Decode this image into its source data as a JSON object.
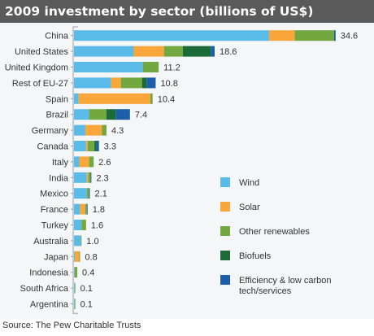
{
  "title": "2009 investment by sector (billions of US$)",
  "source": "Source: The Pew Charitable Trusts",
  "colors": {
    "Wind": "#5bbbe8",
    "Solar": "#f9a63a",
    "Other renewables": "#73a841",
    "Biofuels": "#1b6b38",
    "Efficiency & low carbon tech/services": "#1c5ea8",
    "frame": "#9aa0a8",
    "label": "#333333",
    "background": "#f4f6f8"
  },
  "chart_data": {
    "type": "bar",
    "orientation": "horizontal",
    "stacked": true,
    "categories": [
      "China",
      "United States",
      "United Kingdom",
      "Rest of EU-27",
      "Spain",
      "Brazil",
      "Germany",
      "Canada",
      "Italy",
      "India",
      "Mexico",
      "France",
      "Turkey",
      "Australia",
      "Japan",
      "Indonesia",
      "South Africa",
      "Argentina"
    ],
    "totals": [
      "34.6",
      "18.6",
      "11.2",
      "10.8",
      "10.4",
      "7.4",
      "4.3",
      "3.3",
      "2.6",
      "2.3",
      "2.1",
      "1.8",
      "1.6",
      "1.0",
      "0.8",
      "0.4",
      "0.1",
      "0.1"
    ],
    "series": [
      {
        "name": "Wind",
        "values": [
          25.8,
          7.9,
          9.1,
          4.9,
          0.6,
          2.0,
          1.5,
          1.6,
          0.7,
          1.7,
          1.7,
          0.8,
          1.0,
          0.9,
          0.1,
          0.05,
          0.08,
          0.08
        ]
      },
      {
        "name": "Solar",
        "values": [
          3.4,
          4.0,
          0.0,
          1.3,
          9.5,
          0.0,
          2.2,
          0.2,
          1.3,
          0.2,
          0.0,
          0.7,
          0.0,
          0.0,
          0.6,
          0.0,
          0.0,
          0.0
        ]
      },
      {
        "name": "Other renewables",
        "values": [
          5.2,
          2.5,
          2.1,
          2.8,
          0.3,
          2.3,
          0.6,
          0.9,
          0.6,
          0.3,
          0.3,
          0.2,
          0.6,
          0.1,
          0.1,
          0.35,
          0.02,
          0.02
        ]
      },
      {
        "name": "Biofuels",
        "values": [
          0.0,
          3.7,
          0.0,
          0.6,
          0.0,
          1.2,
          0.0,
          0.3,
          0.0,
          0.0,
          0.0,
          0.0,
          0.0,
          0.0,
          0.0,
          0.0,
          0.0,
          0.0
        ]
      },
      {
        "name": "Efficiency & low carbon tech/services",
        "values": [
          0.2,
          0.5,
          0.0,
          1.2,
          0.0,
          1.9,
          0.0,
          0.3,
          0.0,
          0.1,
          0.1,
          0.1,
          0.0,
          0.0,
          0.0,
          0.0,
          0.0,
          0.0
        ]
      }
    ],
    "legend": [
      {
        "lines": [
          "Wind"
        ]
      },
      {
        "lines": [
          "Solar"
        ]
      },
      {
        "lines": [
          "Other renewables"
        ]
      },
      {
        "lines": [
          "Biofuels"
        ]
      },
      {
        "lines": [
          "Efficiency & low carbon",
          "tech/services"
        ]
      }
    ],
    "legend_position": "bottom-right",
    "grid": false
  }
}
